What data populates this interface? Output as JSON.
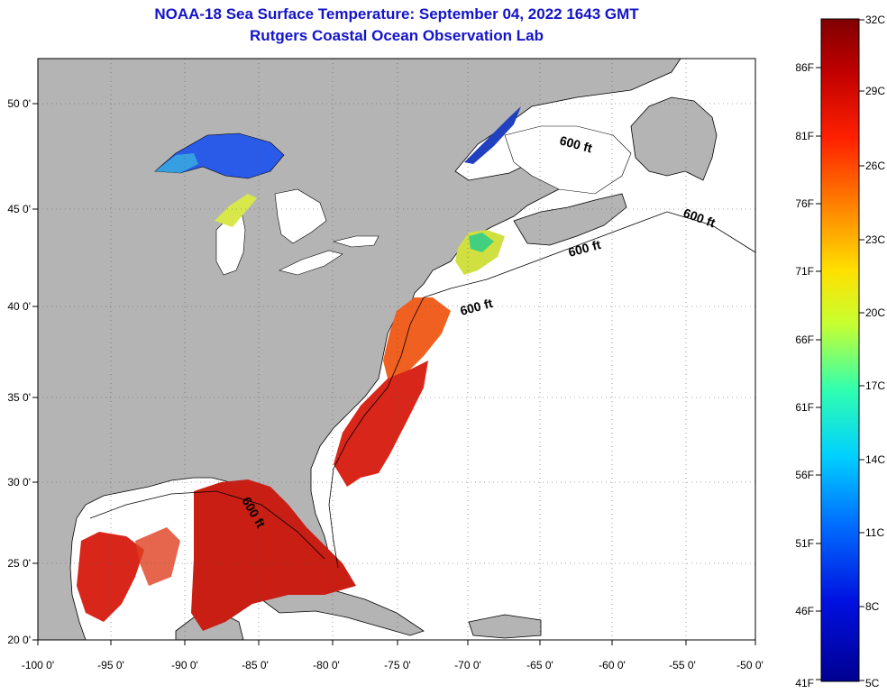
{
  "title": "NOAA-18 Sea Surface Temperature:  September 04, 2022 1643 GMT",
  "subtitle": "Rutgers Coastal Ocean Observation Lab",
  "x_ticks": [
    "-100 0'",
    "-95 0'",
    "-90 0'",
    "-85 0'",
    "-80 0'",
    "-75 0'",
    "-70 0'",
    "-65 0'",
    "-60 0'",
    "-55 0'",
    "-50 0'"
  ],
  "y_ticks": [
    "50 0'",
    "45 0'",
    "40 0'",
    "35 0'",
    "30 0'",
    "25 0'",
    "20 0'"
  ],
  "contour_labels": [
    "600 ft",
    "600 ft",
    "600 ft",
    "600 ft",
    "600 ft"
  ],
  "colorbar": {
    "celsius": [
      "32C",
      "29C",
      "26C",
      "23C",
      "20C",
      "17C",
      "14C",
      "11C",
      "8C",
      "5C"
    ],
    "fahrenheit": [
      "86F",
      "81F",
      "76F",
      "71F",
      "66F",
      "61F",
      "56F",
      "51F",
      "46F",
      "41F"
    ]
  },
  "colors": {
    "land": "#b4b4b4",
    "title": "#1414c8",
    "warm_sst": "#d8261a",
    "cool_sst": "#1e46e6"
  }
}
